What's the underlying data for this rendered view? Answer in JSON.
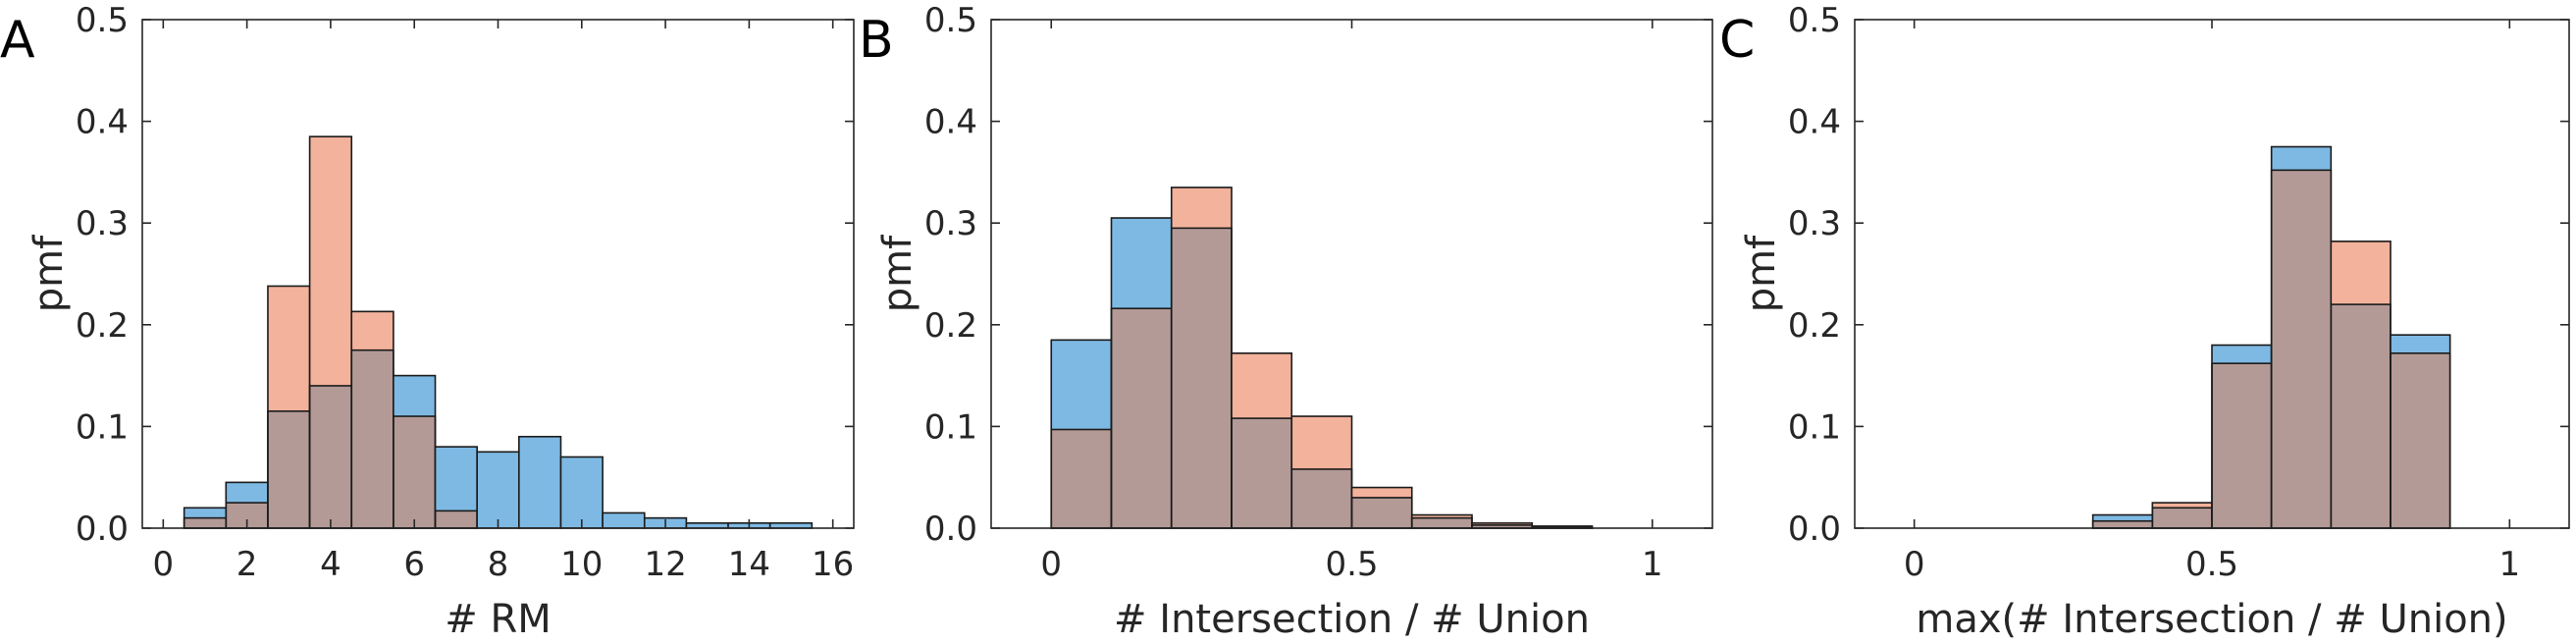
{
  "colors": {
    "series_1": "#7eb9e3",
    "series_2": "#f2b29b",
    "overlap": "#b39a96",
    "edge": "#1a1a1a",
    "axis": "#262626"
  },
  "chart_data": [
    {
      "type": "bar",
      "panel_label": "A",
      "xlabel": "# RM",
      "ylabel": "pmf",
      "xlim": [
        -0.5,
        16.5
      ],
      "ylim": [
        0,
        0.5
      ],
      "xticks": [
        0,
        2,
        4,
        6,
        8,
        10,
        12,
        14,
        16
      ],
      "xtick_labels": [
        "0",
        "2",
        "4",
        "6",
        "8",
        "10",
        "12",
        "14",
        "16"
      ],
      "yticks": [
        0,
        0.1,
        0.2,
        0.3,
        0.4,
        0.5
      ],
      "ytick_labels": [
        "0.0",
        "0.1",
        "0.2",
        "0.3",
        "0.4",
        "0.5"
      ],
      "bin_edges": [
        0.5,
        1.5,
        2.5,
        3.5,
        4.5,
        5.5,
        6.5,
        7.5,
        8.5,
        9.5,
        10.5,
        11.5,
        12.5,
        13.5,
        14.5,
        15.5
      ],
      "series": [
        {
          "values": [
            0.02,
            0.045,
            0.115,
            0.14,
            0.175,
            0.15,
            0.08,
            0.075,
            0.09,
            0.07,
            0.015,
            0.01,
            0.005,
            0.005,
            0.005
          ]
        },
        {
          "values": [
            0.01,
            0.025,
            0.238,
            0.385,
            0.213,
            0.11,
            0.017,
            0,
            0,
            0,
            0,
            0,
            0,
            0,
            0
          ]
        }
      ]
    },
    {
      "type": "bar",
      "panel_label": "B",
      "xlabel": "# Intersection / # Union",
      "ylabel": "pmf",
      "xlim": [
        -0.1,
        1.1
      ],
      "ylim": [
        0,
        0.5
      ],
      "xticks": [
        0,
        0.5,
        1
      ],
      "xtick_labels": [
        "0",
        "0.5",
        "1"
      ],
      "yticks": [
        0,
        0.1,
        0.2,
        0.3,
        0.4,
        0.5
      ],
      "ytick_labels": [
        "0.0",
        "0.1",
        "0.2",
        "0.3",
        "0.4",
        "0.5"
      ],
      "bin_edges": [
        0,
        0.1,
        0.2,
        0.3,
        0.4,
        0.5,
        0.6,
        0.7,
        0.8,
        0.9,
        1.0
      ],
      "series": [
        {
          "values": [
            0.185,
            0.305,
            0.295,
            0.108,
            0.058,
            0.03,
            0.01,
            0.003,
            0.001,
            0.0
          ]
        },
        {
          "values": [
            0.097,
            0.216,
            0.335,
            0.172,
            0.11,
            0.04,
            0.013,
            0.005,
            0.002,
            0.0
          ]
        }
      ]
    },
    {
      "type": "bar",
      "panel_label": "C",
      "xlabel": "max(# Intersection / # Union)",
      "ylabel": "pmf",
      "xlim": [
        -0.1,
        1.1
      ],
      "ylim": [
        0,
        0.5
      ],
      "xticks": [
        0,
        0.5,
        1
      ],
      "xtick_labels": [
        "0",
        "0.5",
        "1"
      ],
      "yticks": [
        0,
        0.1,
        0.2,
        0.3,
        0.4,
        0.5
      ],
      "ytick_labels": [
        "0.0",
        "0.1",
        "0.2",
        "0.3",
        "0.4",
        "0.5"
      ],
      "bin_edges": [
        0.3,
        0.4,
        0.5,
        0.6,
        0.7,
        0.8,
        0.9
      ],
      "series": [
        {
          "values": [
            0.013,
            0.02,
            0.18,
            0.375,
            0.22,
            0.19
          ]
        },
        {
          "values": [
            0.007,
            0.025,
            0.162,
            0.352,
            0.282,
            0.172
          ]
        }
      ]
    }
  ]
}
